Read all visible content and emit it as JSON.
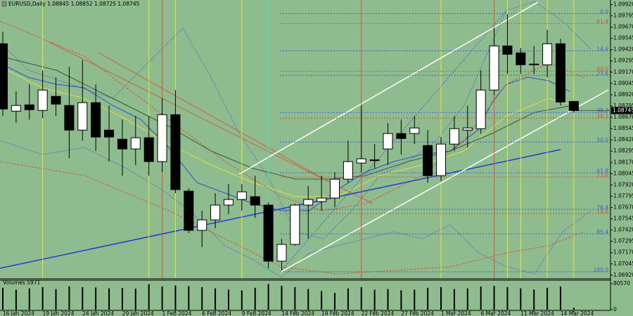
{
  "chart_data": {
    "type": "candlestick",
    "title": "EURUSD,Daily  1.08845 1.08852 1.08725 1.08745",
    "categories": [
      null,
      "16 Jan 2024",
      null,
      null,
      "19 Jan 2024",
      null,
      null,
      "24 Jan 2024",
      null,
      null,
      "29 Jan 2024",
      null,
      null,
      "1 Feb 2024",
      null,
      null,
      "6 Feb 2024",
      null,
      null,
      "9 Feb 2024",
      null,
      null,
      "14 Feb 2024",
      null,
      null,
      "19 Feb 2024",
      null,
      null,
      "22 Feb 2024",
      null,
      null,
      "27 Feb 2024",
      null,
      null,
      "1 Mar 2024",
      null,
      null,
      "6 Mar 2024",
      null,
      null,
      "11 Mar 2024",
      null,
      null,
      "14 Mar 2024"
    ],
    "open": [
      1.09485,
      1.08738,
      1.08808,
      1.08746,
      1.08902,
      1.08801,
      1.08528,
      1.08832,
      1.08528,
      1.08427,
      1.08319,
      1.08443,
      1.08179,
      1.08699,
      1.07852,
      1.07417,
      1.07533,
      1.07697,
      1.07759,
      1.0779,
      1.07697,
      1.07075,
      1.07261,
      1.07697,
      1.07736,
      1.07775,
      1.07984,
      1.08163,
      1.08194,
      1.08319,
      1.0849,
      1.0849,
      1.08357,
      1.08023,
      1.08373,
      1.08528,
      1.08544,
      1.08972,
      1.09461,
      1.09384,
      1.09252,
      1.09252,
      1.09485,
      1.08845
    ],
    "high": [
      1.09617,
      1.08956,
      1.09034,
      1.09189,
      1.09112,
      1.09228,
      1.09306,
      1.09034,
      1.08801,
      1.08645,
      1.08684,
      1.08684,
      1.08878,
      1.08972,
      1.07883,
      1.07634,
      1.07829,
      1.0793,
      1.0793,
      1.08023,
      1.07728,
      1.07323,
      1.07712,
      1.07907,
      1.08023,
      1.08062,
      1.08412,
      1.08801,
      1.08373,
      1.08606,
      1.08645,
      1.08684,
      1.08528,
      1.08451,
      1.08684,
      1.08801,
      1.09189,
      1.09656,
      1.09811,
      1.09438,
      1.09461,
      1.0964,
      1.09539,
      1.08852
    ],
    "low": [
      1.08684,
      1.08606,
      1.08645,
      1.08661,
      1.08684,
      1.08218,
      1.08412,
      1.08295,
      1.08179,
      1.08023,
      1.0814,
      1.08023,
      1.08062,
      1.07829,
      1.07386,
      1.0723,
      1.0744,
      1.07596,
      1.07634,
      1.07557,
      1.06997,
      1.06974,
      1.07246,
      1.07323,
      1.07634,
      1.07673,
      1.07945,
      1.08062,
      1.08101,
      1.0814,
      1.08256,
      1.08373,
      1.07945,
      1.07961,
      1.08295,
      1.08334,
      1.0849,
      1.08917,
      1.0915,
      1.0915,
      1.0915,
      1.09112,
      1.08801,
      1.08725
    ],
    "close": [
      1.08762,
      1.08801,
      1.08754,
      1.08972,
      1.08816,
      1.08528,
      1.08832,
      1.08451,
      1.08451,
      1.08319,
      1.08443,
      1.08179,
      1.08699,
      1.07868,
      1.07417,
      1.07533,
      1.07697,
      1.07759,
      1.07844,
      1.07697,
      1.07075,
      1.07261,
      1.07697,
      1.07759,
      1.07775,
      1.07984,
      1.08179,
      1.0821,
      1.08198,
      1.0849,
      1.08435,
      1.08552,
      1.08023,
      1.08373,
      1.08544,
      1.08552,
      1.08972,
      1.09461,
      1.09368,
      1.09252,
      1.0926,
      1.09485,
      1.08839,
      1.08745
    ],
    "up_color": "#ffffff",
    "down_color": "#000000",
    "background": "#8fbc8f",
    "ylim": [
      1.0688,
      1.0997
    ],
    "yticks": [
      {
        "value": 1.0992,
        "label": "1.09920"
      },
      {
        "value": 1.09795,
        "label": "1.09795"
      },
      {
        "value": 1.0967,
        "label": "1.09670"
      },
      {
        "value": 1.09545,
        "label": "1.09545"
      },
      {
        "value": 1.0942,
        "label": "1.09420"
      },
      {
        "value": 1.09295,
        "label": "1.09295"
      },
      {
        "value": 1.0917,
        "label": "1.09170"
      },
      {
        "value": 1.09045,
        "label": "1.09045"
      },
      {
        "value": 1.0892,
        "label": "1.08920"
      },
      {
        "value": 1.08795,
        "label": "1.08795"
      },
      {
        "value": 1.0867,
        "label": "1.08670"
      },
      {
        "value": 1.08545,
        "label": "1.08545"
      },
      {
        "value": 1.0842,
        "label": "1.08420"
      },
      {
        "value": 1.08295,
        "label": "1.08295"
      },
      {
        "value": 1.0817,
        "label": "1.08170"
      },
      {
        "value": 1.08045,
        "label": "1.08045"
      },
      {
        "value": 1.0792,
        "label": "1.07920"
      },
      {
        "value": 1.07795,
        "label": "1.07795"
      },
      {
        "value": 1.0767,
        "label": "1.07670"
      },
      {
        "value": 1.07545,
        "label": "1.07545"
      },
      {
        "value": 1.0742,
        "label": "1.07420"
      },
      {
        "value": 1.07295,
        "label": "1.07295"
      },
      {
        "value": 1.0717,
        "label": "1.07170"
      },
      {
        "value": 1.07045,
        "label": "1.07045"
      },
      {
        "value": 1.0692,
        "label": "1.06920"
      }
    ],
    "fibo_levels": [
      {
        "label": "0.0",
        "value": 1.09819,
        "color": "#3a5fd9"
      },
      {
        "label": "61.8",
        "value": 1.0971,
        "color": "#d2552d"
      },
      {
        "label": "14.6",
        "value": 1.09407,
        "color": "#3a5fd9"
      },
      {
        "label": "80.0",
        "value": 1.09181,
        "color": "#d2552d"
      },
      {
        "label": "23.6",
        "value": 1.09135,
        "color": "#3a5fd9"
      },
      {
        "label": "38.2",
        "value": 1.08723,
        "color": "#3a5fd9"
      },
      {
        "label": "38.2",
        "value": 1.08661,
        "color": "#d2552d"
      },
      {
        "label": "50.0",
        "value": 1.08396,
        "color": "#3a5fd9"
      },
      {
        "label": "61.8",
        "value": 1.08054,
        "color": "#3a5fd9"
      },
      {
        "label": "23.6",
        "value": 1.08008,
        "color": "#d2552d"
      },
      {
        "label": "76.4",
        "value": 1.0765,
        "color": "#3a5fd9"
      },
      {
        "label": "14.6",
        "value": 1.07603,
        "color": "#d2552d"
      },
      {
        "label": "85.4",
        "value": 1.07378,
        "color": "#3a5fd9"
      },
      {
        "label": "100.0",
        "value": 1.06958,
        "color": "#3a5fd9"
      }
    ],
    "volume_label": "Volumes 5971",
    "volume": [
      68000,
      62000,
      66000,
      70000,
      64000,
      72000,
      70000,
      69000,
      66000,
      67000,
      65000,
      79000,
      72000,
      75000,
      73000,
      70000,
      66000,
      62000,
      60000,
      68000,
      79800,
      74000,
      70000,
      64000,
      58000,
      52000,
      66000,
      70000,
      62000,
      64000,
      60000,
      62000,
      68000,
      70000,
      64000,
      66000,
      72000,
      74000,
      70000,
      66000,
      62000,
      68000,
      72000,
      5971
    ],
    "volume_color": "#000000",
    "volume_ylim": [
      0,
      80570
    ],
    "volume_yticks": [
      80570,
      0
    ]
  }
}
